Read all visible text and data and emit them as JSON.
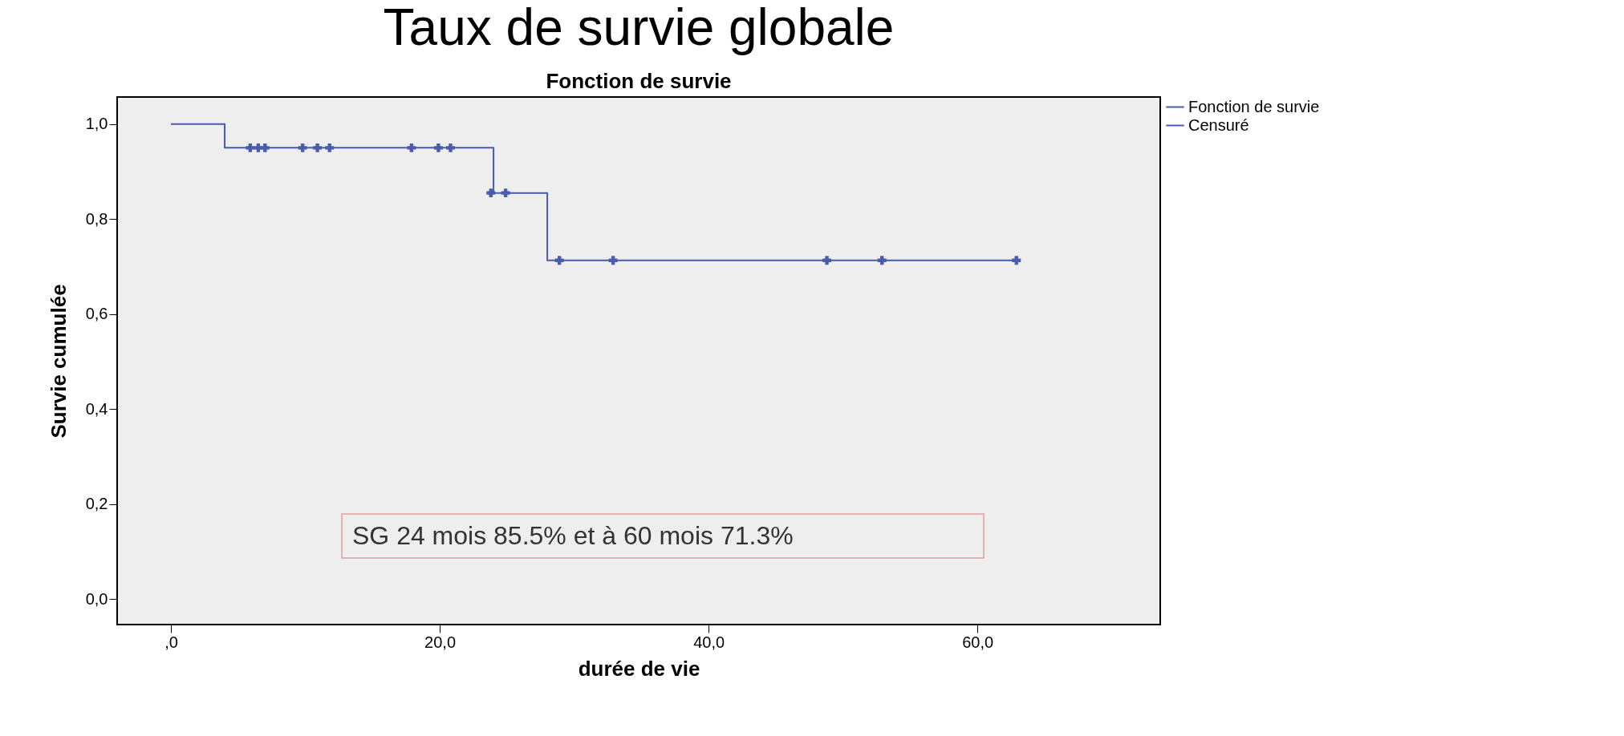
{
  "chart_data": {
    "type": "step",
    "title": "Taux de survie globale",
    "subtitle": "Fonction de survie",
    "xlabel": "durée de vie",
    "ylabel": "Survie cumulée",
    "xlim": [
      -4,
      73.6
    ],
    "ylim": [
      -0.054,
      1.057
    ],
    "xticks": [
      {
        "value": 0,
        "label": ",0"
      },
      {
        "value": 20,
        "label": "20,0"
      },
      {
        "value": 40,
        "label": "40,0"
      },
      {
        "value": 60,
        "label": "60,0"
      }
    ],
    "yticks": [
      {
        "value": 0,
        "label": "0,0"
      },
      {
        "value": 0.2,
        "label": "0,2"
      },
      {
        "value": 0.4,
        "label": "0,4"
      },
      {
        "value": 0.6,
        "label": "0,6"
      },
      {
        "value": 0.8,
        "label": "0,8"
      },
      {
        "value": 1,
        "label": "1,0"
      }
    ],
    "series": [
      {
        "name": "Fonction de survie",
        "color": "#4a5bab",
        "x": [
          0,
          4,
          24,
          28,
          63
        ],
        "values": [
          1,
          0.95,
          0.855,
          0.713,
          0.713
        ]
      },
      {
        "name": "Censuré",
        "type": "scatter",
        "marker": "cross",
        "color": "#4a5bab",
        "x": [
          5.9,
          6.5,
          7.0,
          9.8,
          10.9,
          11.8,
          17.9,
          19.9,
          20.8,
          23.8,
          24.9,
          28.9,
          32.9,
          48.8,
          52.9,
          62.9
        ],
        "values": [
          0.95,
          0.95,
          0.95,
          0.95,
          0.95,
          0.95,
          0.95,
          0.95,
          0.95,
          0.855,
          0.855,
          0.713,
          0.713,
          0.713,
          0.713,
          0.713
        ]
      }
    ],
    "annotations": [
      "SG  24 mois 85.5% et à 60 mois 71.3%"
    ],
    "legend": "top right",
    "grid": false
  }
}
